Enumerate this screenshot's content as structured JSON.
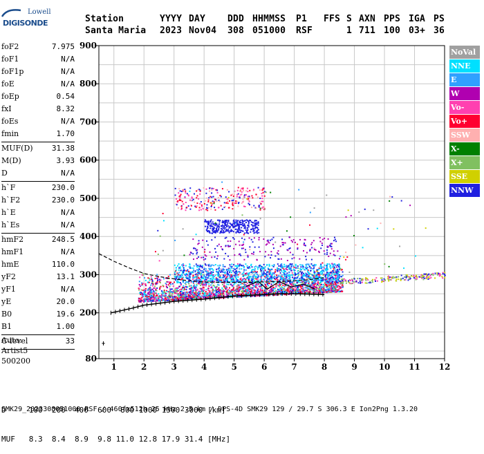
{
  "logo": {
    "top": "Lowell",
    "bottom": "DIGISONDE"
  },
  "header": {
    "row1": [
      "Station",
      "YYYY",
      "DAY",
      "DDD",
      "HHMMSS",
      "P1",
      "FFS",
      "S",
      "AXN",
      "PPS",
      "IGA",
      "PS"
    ],
    "row2": [
      "Santa Maria",
      "2023",
      "Nov04",
      "308",
      "051000",
      "RSF",
      "",
      "1",
      "711",
      "100",
      "03+",
      "36"
    ]
  },
  "params": [
    {
      "label": "foF2",
      "value": "7.975"
    },
    {
      "label": "foF1",
      "value": "N/A"
    },
    {
      "label": "foF1p",
      "value": "N/A"
    },
    {
      "label": "foE",
      "value": "N/A"
    },
    {
      "label": "foEp",
      "value": "0.54"
    },
    {
      "label": "fxI",
      "value": "8.32"
    },
    {
      "label": "foEs",
      "value": "N/A"
    },
    {
      "label": "fmin",
      "value": "1.70",
      "sep": true
    },
    {
      "label": "MUF(D)",
      "value": "31.38"
    },
    {
      "label": "M(D)",
      "value": "3.93"
    },
    {
      "label": "D",
      "value": "N/A",
      "sep": true
    },
    {
      "label": "h`F",
      "value": "230.0"
    },
    {
      "label": "h`F2",
      "value": "230.0"
    },
    {
      "label": "h`E",
      "value": "N/A"
    },
    {
      "label": "h`Es",
      "value": "N/A",
      "sep": true
    },
    {
      "label": "hmF2",
      "value": "248.5"
    },
    {
      "label": "hmF1",
      "value": "N/A"
    },
    {
      "label": "hmE",
      "value": "110.0"
    },
    {
      "label": "yF2",
      "value": "13.1"
    },
    {
      "label": "yF1",
      "value": "N/A"
    },
    {
      "label": "yE",
      "value": "20.0"
    },
    {
      "label": "B0",
      "value": "19.6"
    },
    {
      "label": "B1",
      "value": "1.00",
      "sep": true
    },
    {
      "label": "C-level",
      "value": "33",
      "sep": true
    }
  ],
  "autoscale": {
    "line1": "Auto:",
    "line2": "Artist5",
    "line3": "500200"
  },
  "legend": [
    {
      "label": "NoVal",
      "color": "#a0a0a0"
    },
    {
      "label": "NNE",
      "color": "#00e0ff"
    },
    {
      "label": "E",
      "color": "#30a0ff"
    },
    {
      "label": "W",
      "color": "#b000b0"
    },
    {
      "label": "Vo-",
      "color": "#ff40b0"
    },
    {
      "label": "Vo+",
      "color": "#ff0030"
    },
    {
      "label": "SSW",
      "color": "#ffb0b0"
    },
    {
      "label": "X-",
      "color": "#008000"
    },
    {
      "label": "X+",
      "color": "#80c060"
    },
    {
      "label": "SSE",
      "color": "#d0d000"
    },
    {
      "label": "NNW",
      "color": "#2020e0"
    }
  ],
  "bottom": {
    "d_row": "D     100  200  400  600  800 1000 1500 3000 [km]",
    "muf_row": "MUF   8.3  8.4  8.9  9.8 11.0 12.8 17.9 31.4 [MHz]",
    "footer": "SMK29_2023308051000.RSF / 460fx512h 25 kHz 2.5 km / DPS-4D SMK29 129 / 29.7 S 306.3 E Ion2Png 1.3.20"
  },
  "chart_data": {
    "type": "scatter",
    "xlim": [
      0.5,
      12
    ],
    "ylim": [
      80,
      900
    ],
    "xticks": [
      1,
      2,
      3,
      4,
      5,
      6,
      7,
      8,
      9,
      10,
      11,
      12
    ],
    "yticks": [
      80,
      200,
      300,
      400,
      500,
      600,
      700,
      800,
      900
    ],
    "grid": true,
    "trace_h": {
      "name": "trace",
      "x": [
        0.9,
        1.2,
        1.6,
        2.0,
        2.5,
        3.0,
        3.5,
        4.0,
        4.5,
        5.0,
        5.5,
        6.0,
        6.5,
        7.0,
        7.5,
        8.0
      ],
      "y": [
        200,
        205,
        212,
        220,
        225,
        230,
        233,
        236,
        240,
        244,
        246,
        248,
        250,
        250,
        249,
        248
      ]
    },
    "profile": {
      "name": "profile",
      "x": [
        0.5,
        1.0,
        1.5,
        2.0,
        2.5,
        3.0,
        3.5,
        4.0,
        4.5,
        5.0,
        5.5,
        6.0,
        6.5,
        7.0,
        7.5,
        7.975
      ],
      "y": [
        355,
        335,
        318,
        303,
        295,
        289,
        284,
        281,
        280,
        280,
        280,
        281,
        282,
        284,
        287,
        292
      ]
    },
    "extrap": {
      "name": "extrapolation",
      "x": [
        5.4,
        5.8,
        6.1,
        6.5,
        6.9,
        7.3,
        7.7
      ],
      "y": [
        270,
        282,
        262,
        282,
        268,
        275,
        262
      ]
    }
  }
}
